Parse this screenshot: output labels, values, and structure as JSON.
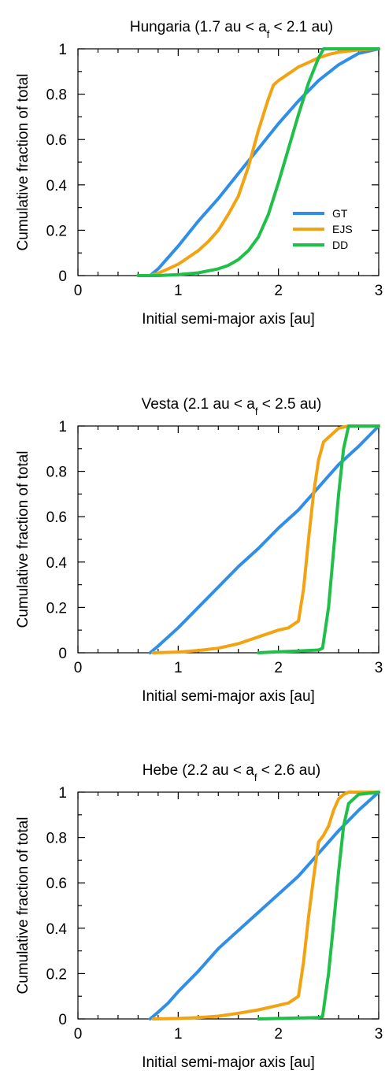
{
  "chart_data": [
    {
      "type": "line",
      "title": "Hungaria (1.7 au < a",
      "title_sub": "f",
      "title_end": " < 2.1 au)",
      "xlabel": "Initial semi-major axis [au]",
      "ylabel": "Cumulative fraction of total",
      "xlim": [
        0,
        3
      ],
      "ylim": [
        0,
        1
      ],
      "xticks": [
        0,
        1,
        2,
        3
      ],
      "yticks": [
        0,
        0.2,
        0.4,
        0.6,
        0.8,
        1
      ],
      "xtick_labels": [
        "0",
        "1",
        "2",
        "3"
      ],
      "ytick_labels": [
        "0",
        "0.2",
        "0.4",
        "0.6",
        "0.8",
        "1"
      ],
      "grid": false,
      "legend": "right",
      "series": [
        {
          "name": "GT",
          "color": "#2f8fe8",
          "x": [
            0.72,
            0.8,
            0.9,
            1.0,
            1.2,
            1.4,
            1.6,
            1.8,
            2.0,
            2.2,
            2.4,
            2.6,
            2.8,
            3.0
          ],
          "y": [
            0,
            0.03,
            0.08,
            0.13,
            0.24,
            0.34,
            0.45,
            0.56,
            0.67,
            0.77,
            0.86,
            0.93,
            0.98,
            1.0
          ]
        },
        {
          "name": "EJS",
          "color": "#f2a312",
          "x": [
            0.72,
            0.8,
            0.9,
            1.0,
            1.1,
            1.2,
            1.3,
            1.4,
            1.5,
            1.6,
            1.7,
            1.8,
            1.9,
            1.95,
            2.0,
            2.1,
            2.2,
            2.3,
            2.4,
            2.5,
            2.6,
            2.8,
            3.0
          ],
          "y": [
            0,
            0.01,
            0.03,
            0.05,
            0.08,
            0.11,
            0.15,
            0.2,
            0.27,
            0.35,
            0.48,
            0.64,
            0.78,
            0.84,
            0.86,
            0.89,
            0.92,
            0.94,
            0.96,
            0.975,
            0.985,
            0.995,
            1.0
          ]
        },
        {
          "name": "DD",
          "color": "#1fbf4a",
          "x": [
            0.6,
            0.8,
            1.0,
            1.2,
            1.4,
            1.5,
            1.6,
            1.7,
            1.8,
            1.9,
            2.0,
            2.1,
            2.2,
            2.3,
            2.4,
            2.45,
            3.0
          ],
          "y": [
            0,
            0.0,
            0.004,
            0.012,
            0.03,
            0.045,
            0.07,
            0.11,
            0.17,
            0.27,
            0.41,
            0.56,
            0.71,
            0.85,
            0.96,
            1.0,
            1.0
          ]
        }
      ]
    },
    {
      "type": "line",
      "title": "Vesta (2.1 au < a",
      "title_sub": "f",
      "title_end": " < 2.5 au)",
      "xlabel": "Initial semi-major axis [au]",
      "ylabel": "Cumulative fraction of total",
      "xlim": [
        0,
        3
      ],
      "ylim": [
        0,
        1
      ],
      "xticks": [
        0,
        1,
        2,
        3
      ],
      "yticks": [
        0,
        0.2,
        0.4,
        0.6,
        0.8,
        1
      ],
      "xtick_labels": [
        "0",
        "1",
        "2",
        "3"
      ],
      "ytick_labels": [
        "0",
        "0.2",
        "0.4",
        "0.6",
        "0.8",
        "1"
      ],
      "grid": false,
      "series": [
        {
          "name": "GT",
          "color": "#2f8fe8",
          "x": [
            0.72,
            0.8,
            0.9,
            1.0,
            1.2,
            1.4,
            1.6,
            1.8,
            2.0,
            2.1,
            2.2,
            2.4,
            2.6,
            2.8,
            3.0
          ],
          "y": [
            0,
            0.03,
            0.07,
            0.11,
            0.2,
            0.29,
            0.38,
            0.46,
            0.55,
            0.59,
            0.63,
            0.73,
            0.83,
            0.91,
            1.0
          ]
        },
        {
          "name": "EJS",
          "color": "#f2a312",
          "x": [
            0.75,
            1.0,
            1.2,
            1.4,
            1.6,
            1.8,
            2.0,
            2.1,
            2.2,
            2.25,
            2.3,
            2.35,
            2.4,
            2.45,
            2.5,
            2.55,
            2.6,
            2.7,
            3.0
          ],
          "y": [
            0,
            0.003,
            0.01,
            0.02,
            0.04,
            0.07,
            0.1,
            0.11,
            0.14,
            0.28,
            0.5,
            0.7,
            0.85,
            0.93,
            0.95,
            0.97,
            0.99,
            1.0,
            1.0
          ]
        },
        {
          "name": "DD",
          "color": "#1fbf4a",
          "x": [
            1.8,
            2.0,
            2.2,
            2.4,
            2.44,
            2.5,
            2.55,
            2.6,
            2.65,
            2.7,
            3.0
          ],
          "y": [
            0,
            0.004,
            0.008,
            0.012,
            0.02,
            0.2,
            0.45,
            0.7,
            0.9,
            1.0,
            1.0
          ]
        }
      ]
    },
    {
      "type": "line",
      "title": "Hebe (2.2 au < a",
      "title_sub": "f",
      "title_end": " < 2.6 au)",
      "xlabel": "Initial semi-major axis [au]",
      "ylabel": "Cumulative fraction of total",
      "xlim": [
        0,
        3
      ],
      "ylim": [
        0,
        1
      ],
      "xticks": [
        0,
        1,
        2,
        3
      ],
      "yticks": [
        0,
        0.2,
        0.4,
        0.6,
        0.8,
        1
      ],
      "xtick_labels": [
        "0",
        "1",
        "2",
        "3"
      ],
      "ytick_labels": [
        "0",
        "0.2",
        "0.4",
        "0.6",
        "0.8",
        "1"
      ],
      "grid": false,
      "series": [
        {
          "name": "GT",
          "color": "#2f8fe8",
          "x": [
            0.72,
            0.8,
            0.9,
            1.0,
            1.2,
            1.4,
            1.6,
            1.8,
            2.0,
            2.2,
            2.4,
            2.6,
            2.8,
            3.0
          ],
          "y": [
            0,
            0.03,
            0.07,
            0.12,
            0.21,
            0.31,
            0.39,
            0.47,
            0.55,
            0.63,
            0.73,
            0.83,
            0.92,
            1.0
          ]
        },
        {
          "name": "EJS",
          "color": "#f2a312",
          "x": [
            0.75,
            1.0,
            1.2,
            1.4,
            1.6,
            1.8,
            2.0,
            2.1,
            2.2,
            2.25,
            2.3,
            2.35,
            2.4,
            2.45,
            2.5,
            2.55,
            2.6,
            2.65,
            2.7,
            2.8,
            3.0
          ],
          "y": [
            0,
            0.002,
            0.006,
            0.012,
            0.025,
            0.04,
            0.06,
            0.07,
            0.1,
            0.25,
            0.45,
            0.62,
            0.78,
            0.81,
            0.85,
            0.92,
            0.97,
            0.99,
            1.0,
            1.0,
            1.0
          ]
        },
        {
          "name": "DD",
          "color": "#1fbf4a",
          "x": [
            1.8,
            2.0,
            2.2,
            2.4,
            2.44,
            2.5,
            2.55,
            2.6,
            2.65,
            2.7,
            2.8,
            3.0
          ],
          "y": [
            0,
            0.002,
            0.004,
            0.006,
            0.01,
            0.2,
            0.42,
            0.65,
            0.85,
            0.95,
            0.99,
            1.0
          ]
        }
      ]
    }
  ]
}
